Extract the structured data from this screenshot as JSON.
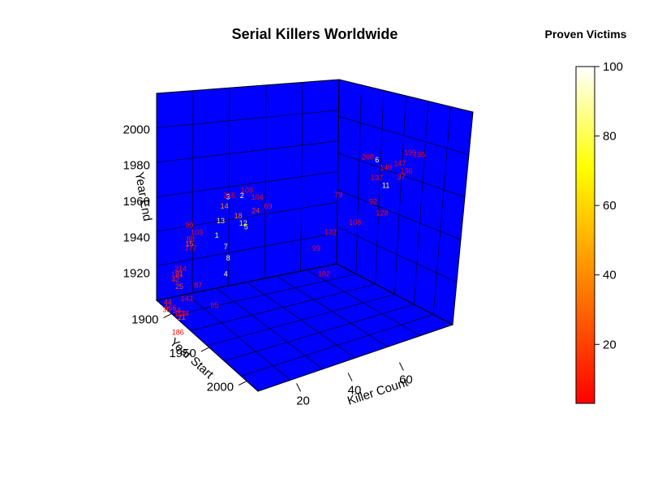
{
  "chart_data": {
    "type": "scatter",
    "title": "Serial Killers Worldwide",
    "xlabel": "Killer Count",
    "ylabel": "Year Start",
    "zlabel": "Year End",
    "x_ticks": [
      "20",
      "40",
      "60"
    ],
    "y_ticks": [
      "1900",
      "1950",
      "2000"
    ],
    "z_ticks": [
      "1920",
      "1940",
      "1960",
      "1980",
      "2000"
    ],
    "xlim": [
      5,
      75
    ],
    "ylim": [
      1880,
      2015
    ],
    "zlim": [
      1905,
      2020
    ],
    "colorbar": {
      "title": "Proven Victims",
      "ticks": [
        "20",
        "40",
        "60",
        "80",
        "100"
      ],
      "range": [
        3,
        100
      ],
      "colors": [
        "#ff0000",
        "#ff8000",
        "#ffff00",
        "#ffffff"
      ]
    },
    "box_color": "#0000ff",
    "grid": true,
    "legend_position": "right",
    "points": [
      {
        "label": "2",
        "x": 9,
        "y": 1980,
        "z": 1998,
        "v": 98
      },
      {
        "label": "3",
        "x": 8,
        "y": 1965,
        "z": 1992,
        "v": 95
      },
      {
        "label": "4",
        "x": 10,
        "y": 1955,
        "z": 1945,
        "v": 93
      },
      {
        "label": "6",
        "x": 60,
        "y": 1985,
        "z": 2005,
        "v": 90
      },
      {
        "label": "11",
        "x": 62,
        "y": 1990,
        "z": 1992,
        "v": 85
      },
      {
        "label": "8",
        "x": 8,
        "y": 1965,
        "z": 1958,
        "v": 88
      },
      {
        "label": "7",
        "x": 10,
        "y": 1955,
        "z": 1960,
        "v": 86
      },
      {
        "label": "1",
        "x": 8,
        "y": 1950,
        "z": 1965,
        "v": 82
      },
      {
        "label": "5",
        "x": 12,
        "y": 1975,
        "z": 1978,
        "v": 80
      },
      {
        "label": "12",
        "x": 8,
        "y": 1985,
        "z": 1985,
        "v": 70
      },
      {
        "label": "13",
        "x": 8,
        "y": 1955,
        "z": 1975,
        "v": 68
      },
      {
        "label": "14",
        "x": 8,
        "y": 1960,
        "z": 1985,
        "v": 40
      },
      {
        "label": "15",
        "x": 9,
        "y": 1910,
        "z": 1945,
        "v": 30
      },
      {
        "label": "18",
        "x": 9,
        "y": 1975,
        "z": 1985,
        "v": 35
      },
      {
        "label": "21",
        "x": 6,
        "y": 1910,
        "z": 1905,
        "v": 25
      },
      {
        "label": "24",
        "x": 10,
        "y": 1995,
        "z": 1995,
        "v": 20
      },
      {
        "label": "25",
        "x": 8,
        "y": 1900,
        "z": 1918,
        "v": 22
      },
      {
        "label": "31",
        "x": 8,
        "y": 1900,
        "z": 1925,
        "v": 20
      },
      {
        "label": "35",
        "x": 6,
        "y": 1890,
        "z": 1902,
        "v": 15
      },
      {
        "label": "37",
        "x": 68,
        "y": 1990,
        "z": 1995,
        "v": 10
      },
      {
        "label": "42",
        "x": 8,
        "y": 1895,
        "z": 1920,
        "v": 12
      },
      {
        "label": "44",
        "x": 7,
        "y": 1888,
        "z": 1905,
        "v": 12
      },
      {
        "label": "54",
        "x": 7,
        "y": 1900,
        "z": 1905,
        "v": 10
      },
      {
        "label": "69",
        "x": 25,
        "y": 1960,
        "z": 1980,
        "v": 8
      },
      {
        "label": "79",
        "x": 45,
        "y": 1985,
        "z": 1990,
        "v": 8
      },
      {
        "label": "87",
        "x": 8,
        "y": 1925,
        "z": 1928,
        "v": 7
      },
      {
        "label": "88",
        "x": 8,
        "y": 1915,
        "z": 1950,
        "v": 7
      },
      {
        "label": "90",
        "x": 6,
        "y": 1920,
        "z": 1960,
        "v": 6
      },
      {
        "label": "92",
        "x": 60,
        "y": 1980,
        "z": 1980,
        "v": 6
      },
      {
        "label": "95",
        "x": 10,
        "y": 1940,
        "z": 1922,
        "v": 6
      },
      {
        "label": "99",
        "x": 35,
        "y": 1990,
        "z": 1965,
        "v": 5
      },
      {
        "label": "103",
        "x": 9,
        "y": 1920,
        "z": 1955,
        "v": 5
      },
      {
        "label": "104",
        "x": 12,
        "y": 1990,
        "z": 2000,
        "v": 5
      },
      {
        "label": "108",
        "x": 50,
        "y": 1990,
        "z": 1975,
        "v": 5
      },
      {
        "label": "109",
        "x": 8,
        "y": 1990,
        "z": 2005,
        "v": 5
      },
      {
        "label": "117",
        "x": 7,
        "y": 1900,
        "z": 1925,
        "v": 5
      },
      {
        "label": "128",
        "x": 62,
        "y": 1985,
        "z": 1975,
        "v": 4
      },
      {
        "label": "132",
        "x": 42,
        "y": 1985,
        "z": 1970,
        "v": 4
      },
      {
        "label": "134",
        "x": 8,
        "y": 1905,
        "z": 1905,
        "v": 4
      },
      {
        "label": "136",
        "x": 70,
        "y": 1990,
        "z": 1998,
        "v": 4
      },
      {
        "label": "137",
        "x": 60,
        "y": 1985,
        "z": 1995,
        "v": 4
      },
      {
        "label": "143",
        "x": 8,
        "y": 1910,
        "z": 1915,
        "v": 4
      },
      {
        "label": "147",
        "x": 66,
        "y": 1995,
        "z": 2005,
        "v": 4
      },
      {
        "label": "149",
        "x": 62,
        "y": 1990,
        "z": 2002,
        "v": 4
      },
      {
        "label": "156",
        "x": 7,
        "y": 1905,
        "z": 1905,
        "v": 4
      },
      {
        "label": "166",
        "x": 6,
        "y": 1895,
        "z": 1905,
        "v": 4
      },
      {
        "label": "177",
        "x": 8,
        "y": 1915,
        "z": 1945,
        "v": 3
      },
      {
        "label": "182",
        "x": 38,
        "y": 1990,
        "z": 1950,
        "v": 3
      },
      {
        "label": "186",
        "x": 6,
        "y": 1905,
        "z": 1895,
        "v": 3
      },
      {
        "label": "190",
        "x": 70,
        "y": 1995,
        "z": 2010,
        "v": 3
      },
      {
        "label": "195",
        "x": 72,
        "y": 2000,
        "z": 2010,
        "v": 3
      },
      {
        "label": "208",
        "x": 55,
        "y": 1990,
        "z": 2010,
        "v": 3
      },
      {
        "label": "214",
        "x": 7,
        "y": 1905,
        "z": 1930,
        "v": 3
      },
      {
        "label": "215",
        "x": 7,
        "y": 1970,
        "z": 1995,
        "v": 3
      }
    ]
  }
}
